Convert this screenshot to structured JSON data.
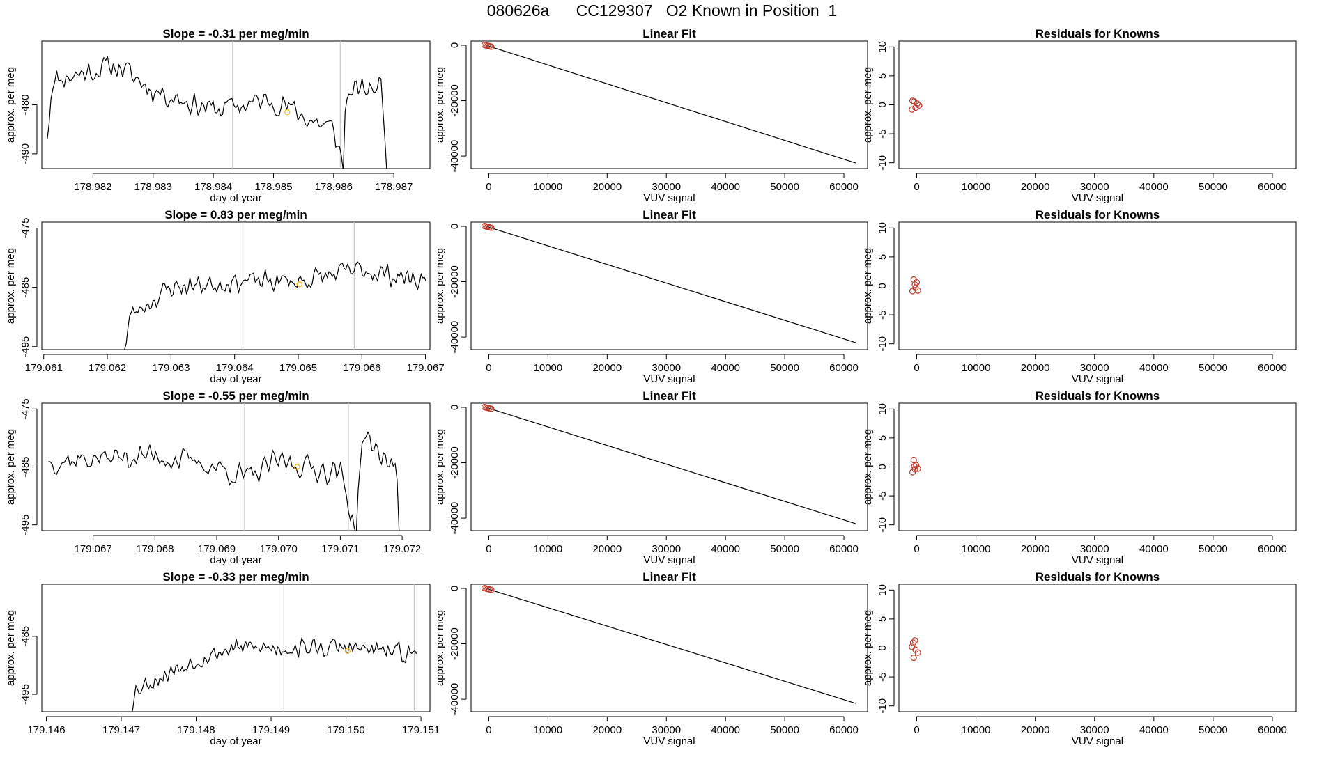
{
  "title": "080626a      CC129307   O2 Known in Position  1",
  "colors": {
    "axis": "#000000",
    "line": "#000000",
    "vline": "#c8c8c8",
    "marker": "#ffb000",
    "circle": "#c0392b"
  },
  "chart_data": [
    {
      "type": "line",
      "row": 1,
      "title": "Slope =  -0.31  per meg/min",
      "xlabel": "day of year",
      "ylabel": "approx. per meg",
      "xlim": [
        178.98115,
        178.9876
      ],
      "ylim": [
        -493,
        -467
      ],
      "xticks": [
        178.982,
        178.983,
        178.984,
        178.985,
        178.986,
        178.987
      ],
      "xtick_labels": [
        "178.982",
        "178.983",
        "178.984",
        "178.985",
        "178.986",
        "178.987"
      ],
      "yticks": [
        -490,
        -480
      ],
      "ytick_labels": [
        "-490",
        "-480"
      ],
      "x_range": [
        178.98124,
        178.98688
      ],
      "vlines": [
        178.98432,
        178.98611
      ],
      "marker": [
        178.98523,
        -481.5
      ],
      "anchors": [
        [
          178.98124,
          -487
        ],
        [
          178.98132,
          -475
        ],
        [
          178.982,
          -473
        ],
        [
          178.9824,
          -472
        ],
        [
          178.983,
          -477
        ],
        [
          178.984,
          -481
        ],
        [
          178.985,
          -479
        ],
        [
          178.9856,
          -483
        ],
        [
          178.986,
          -485
        ],
        [
          178.98613,
          -491
        ],
        [
          178.98616,
          -493
        ],
        [
          178.9862,
          -478
        ],
        [
          178.9868,
          -476
        ],
        [
          178.98688,
          -493
        ]
      ],
      "amp": 3,
      "seed": 11
    },
    {
      "type": "line",
      "row": 2,
      "title": "Slope =  0.83  per meg/min",
      "xlabel": "day of year",
      "ylabel": "approx. per meg",
      "xlim": [
        179.06097,
        179.06707
      ],
      "ylim": [
        -495.5,
        -474
      ],
      "xticks": [
        179.061,
        179.062,
        179.063,
        179.064,
        179.065,
        179.066,
        179.067
      ],
      "xtick_labels": [
        "179.061",
        "179.062",
        "179.063",
        "179.064",
        "179.065",
        "179.066",
        "179.067"
      ],
      "yticks": [
        -495,
        -485,
        -475
      ],
      "ytick_labels": [
        "-495",
        "-485",
        "-475"
      ],
      "x_range": [
        179.06227,
        179.06701
      ],
      "vlines": [
        179.06413,
        179.06588
      ],
      "marker": [
        179.06502,
        -484.5
      ],
      "anchors": [
        [
          179.06227,
          -495.5
        ],
        [
          179.06235,
          -490
        ],
        [
          179.0626,
          -488
        ],
        [
          179.063,
          -485
        ],
        [
          179.064,
          -484
        ],
        [
          179.065,
          -484
        ],
        [
          179.066,
          -482
        ],
        [
          179.06701,
          -484
        ]
      ],
      "amp": 2.2,
      "seed": 23
    },
    {
      "type": "line",
      "row": 3,
      "title": "Slope =  -0.55  per meg/min",
      "xlabel": "day of year",
      "ylabel": "approx. per meg",
      "xlim": [
        179.06617,
        179.07245
      ],
      "ylim": [
        -496,
        -474
      ],
      "xticks": [
        179.067,
        179.068,
        179.069,
        179.07,
        179.071,
        179.072
      ],
      "xtick_labels": [
        "179.067",
        "179.068",
        "179.069",
        "179.070",
        "179.071",
        "179.072"
      ],
      "yticks": [
        -495,
        -485,
        -475
      ],
      "ytick_labels": [
        "-495",
        "-485",
        "-475"
      ],
      "x_range": [
        179.06628,
        179.07195
      ],
      "vlines": [
        179.06945,
        179.07113
      ],
      "marker": [
        179.0703,
        -485
      ],
      "anchors": [
        [
          179.06628,
          -484
        ],
        [
          179.068,
          -483
        ],
        [
          179.069,
          -485
        ],
        [
          179.0695,
          -487
        ],
        [
          179.07,
          -484
        ],
        [
          179.071,
          -486
        ],
        [
          179.07115,
          -492
        ],
        [
          179.07125,
          -496
        ],
        [
          179.07135,
          -480
        ],
        [
          179.0719,
          -485
        ],
        [
          179.07195,
          -496
        ]
      ],
      "amp": 2.6,
      "seed": 37
    },
    {
      "type": "line",
      "row": 4,
      "title": "Slope =  -0.33  per meg/min",
      "xlabel": "day of year",
      "ylabel": "approx. per meg",
      "xlim": [
        179.14594,
        179.15112
      ],
      "ylim": [
        -498,
        -476
      ],
      "xticks": [
        179.146,
        179.147,
        179.148,
        179.149,
        179.15,
        179.151
      ],
      "xtick_labels": [
        "179.146",
        "179.147",
        "179.148",
        "179.149",
        "179.150",
        "179.151"
      ],
      "yticks": [
        -495,
        -485
      ],
      "ytick_labels": [
        "-495",
        "-485"
      ],
      "x_range": [
        179.14711,
        179.15094
      ],
      "vlines": [
        179.14917,
        179.15091
      ],
      "marker": [
        179.15002,
        -487.5
      ],
      "anchors": [
        [
          179.14711,
          -498
        ],
        [
          179.1472,
          -494
        ],
        [
          179.148,
          -489
        ],
        [
          179.1485,
          -487
        ],
        [
          179.149,
          -487
        ],
        [
          179.15,
          -487
        ],
        [
          179.15094,
          -488
        ]
      ],
      "amp": 2.0,
      "seed": 53
    },
    {
      "type": "scatter",
      "row": 1,
      "title": "Linear Fit",
      "xlabel": "VUV signal",
      "ylabel": "approx. per meg",
      "xlim": [
        -3000,
        64000
      ],
      "ylim": [
        -44500,
        1500
      ],
      "xticks": [
        0,
        10000,
        20000,
        30000,
        40000,
        50000,
        60000
      ],
      "xtick_labels": [
        "0",
        "10000",
        "20000",
        "30000",
        "40000",
        "50000",
        "60000"
      ],
      "yticks": [
        0,
        -20000,
        -40000
      ],
      "ytick_labels": [
        "0",
        "-20000",
        "-40000"
      ],
      "line": [
        [
          -500,
          0
        ],
        [
          62000,
          -42500
        ]
      ],
      "points": [
        [
          -700,
          100
        ],
        [
          -450,
          -50
        ],
        [
          -200,
          -200
        ],
        [
          100,
          -350
        ],
        [
          400,
          -500
        ]
      ]
    },
    {
      "type": "scatter",
      "row": 2,
      "title": "Linear Fit",
      "xlabel": "VUV signal",
      "ylabel": "approx. per meg",
      "xlim": [
        -3000,
        64000
      ],
      "ylim": [
        -44500,
        1500
      ],
      "xticks": [
        0,
        10000,
        20000,
        30000,
        40000,
        50000,
        60000
      ],
      "xtick_labels": [
        "0",
        "10000",
        "20000",
        "30000",
        "40000",
        "50000",
        "60000"
      ],
      "yticks": [
        0,
        -20000,
        -40000
      ],
      "ytick_labels": [
        "0",
        "-20000",
        "-40000"
      ],
      "line": [
        [
          -500,
          0
        ],
        [
          62000,
          -42000
        ]
      ],
      "points": [
        [
          -700,
          100
        ],
        [
          -450,
          -50
        ],
        [
          -200,
          -200
        ],
        [
          100,
          -350
        ],
        [
          400,
          -500
        ]
      ]
    },
    {
      "type": "scatter",
      "row": 3,
      "title": "Linear Fit",
      "xlabel": "VUV signal",
      "ylabel": "approx. per meg",
      "xlim": [
        -3000,
        64000
      ],
      "ylim": [
        -44500,
        1500
      ],
      "xticks": [
        0,
        10000,
        20000,
        30000,
        40000,
        50000,
        60000
      ],
      "xtick_labels": [
        "0",
        "10000",
        "20000",
        "30000",
        "40000",
        "50000",
        "60000"
      ],
      "yticks": [
        0,
        -20000,
        -40000
      ],
      "ytick_labels": [
        "0",
        "-20000",
        "-40000"
      ],
      "line": [
        [
          -500,
          0
        ],
        [
          62000,
          -42000
        ]
      ],
      "points": [
        [
          -700,
          100
        ],
        [
          -450,
          -50
        ],
        [
          -200,
          -200
        ],
        [
          100,
          -350
        ],
        [
          400,
          -500
        ]
      ]
    },
    {
      "type": "scatter",
      "row": 4,
      "title": "Linear Fit",
      "xlabel": "VUV signal",
      "ylabel": "approx. per meg",
      "xlim": [
        -3000,
        64000
      ],
      "ylim": [
        -44500,
        1500
      ],
      "xticks": [
        0,
        10000,
        20000,
        30000,
        40000,
        50000,
        60000
      ],
      "xtick_labels": [
        "0",
        "10000",
        "20000",
        "30000",
        "40000",
        "50000",
        "60000"
      ],
      "yticks": [
        0,
        -20000,
        -40000
      ],
      "ytick_labels": [
        "0",
        "-20000",
        "-40000"
      ],
      "line": [
        [
          -500,
          0
        ],
        [
          62000,
          -41500
        ]
      ],
      "points": [
        [
          -700,
          100
        ],
        [
          -450,
          -50
        ],
        [
          -200,
          -200
        ],
        [
          100,
          -350
        ],
        [
          400,
          -500
        ]
      ]
    },
    {
      "type": "scatter",
      "row": 1,
      "title": "Residuals for Knowns",
      "xlabel": "VUV signal",
      "ylabel": "approx. per meg",
      "xlim": [
        -3000,
        64000
      ],
      "ylim": [
        -11,
        11
      ],
      "xticks": [
        0,
        10000,
        20000,
        30000,
        40000,
        50000,
        60000
      ],
      "xtick_labels": [
        "0",
        "10000",
        "20000",
        "30000",
        "40000",
        "50000",
        "60000"
      ],
      "yticks": [
        -10,
        -5,
        0,
        5,
        10
      ],
      "ytick_labels": [
        "-10",
        "-5",
        "0",
        "5",
        "10"
      ],
      "points": [
        [
          -700,
          0.7
        ],
        [
          -450,
          0.6
        ],
        [
          -200,
          -0.5
        ],
        [
          100,
          0.2
        ],
        [
          400,
          -0.1
        ],
        [
          -800,
          -0.8
        ]
      ]
    },
    {
      "type": "scatter",
      "row": 2,
      "title": "Residuals for Knowns",
      "xlabel": "VUV signal",
      "ylabel": "approx. per meg",
      "xlim": [
        -3000,
        64000
      ],
      "ylim": [
        -11,
        11
      ],
      "xticks": [
        0,
        10000,
        20000,
        30000,
        40000,
        50000,
        60000
      ],
      "xtick_labels": [
        "0",
        "10000",
        "20000",
        "30000",
        "40000",
        "50000",
        "60000"
      ],
      "yticks": [
        -10,
        -5,
        0,
        5,
        10
      ],
      "ytick_labels": [
        "-10",
        "-5",
        "0",
        "5",
        "10"
      ],
      "points": [
        [
          -500,
          1.1
        ],
        [
          -300,
          0.2
        ],
        [
          0,
          0.6
        ],
        [
          200,
          -0.8
        ],
        [
          -700,
          -0.9
        ],
        [
          -200,
          -0.3
        ]
      ]
    },
    {
      "type": "scatter",
      "row": 3,
      "title": "Residuals for Knowns",
      "xlabel": "VUV signal",
      "ylabel": "approx. per meg",
      "xlim": [
        -3000,
        64000
      ],
      "ylim": [
        -11,
        11
      ],
      "xticks": [
        0,
        10000,
        20000,
        30000,
        40000,
        50000,
        60000
      ],
      "xtick_labels": [
        "0",
        "10000",
        "20000",
        "30000",
        "40000",
        "50000",
        "60000"
      ],
      "yticks": [
        -10,
        -5,
        0,
        5,
        10
      ],
      "ytick_labels": [
        "-10",
        "-5",
        "0",
        "5",
        "10"
      ],
      "points": [
        [
          -500,
          1.2
        ],
        [
          -400,
          0.1
        ],
        [
          -100,
          0.3
        ],
        [
          200,
          -0.3
        ],
        [
          -700,
          -0.9
        ],
        [
          -300,
          -0.4
        ]
      ]
    },
    {
      "type": "scatter",
      "row": 4,
      "title": "Residuals for Knowns",
      "xlabel": "VUV signal",
      "ylabel": "approx. per meg",
      "xlim": [
        -3000,
        64000
      ],
      "ylim": [
        -11,
        11
      ],
      "xticks": [
        0,
        10000,
        20000,
        30000,
        40000,
        50000,
        60000
      ],
      "xtick_labels": [
        "0",
        "10000",
        "20000",
        "30000",
        "40000",
        "50000",
        "60000"
      ],
      "yticks": [
        -10,
        -5,
        0,
        5,
        10
      ],
      "ytick_labels": [
        "-10",
        "-5",
        "0",
        "5",
        "10"
      ],
      "points": [
        [
          -300,
          1.3
        ],
        [
          -600,
          0.9
        ],
        [
          -800,
          0.2
        ],
        [
          -200,
          -0.3
        ],
        [
          200,
          -0.8
        ],
        [
          -500,
          -1.7
        ]
      ]
    }
  ]
}
